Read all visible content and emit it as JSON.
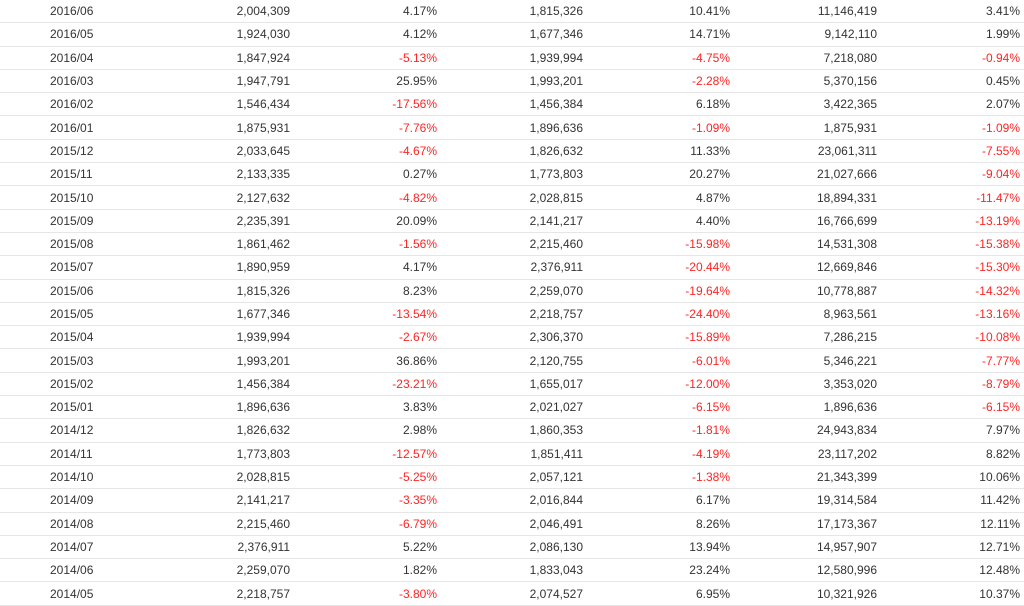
{
  "colors": {
    "text": "#333333",
    "negative": "#ff2424",
    "row_border": "#e6e6e6",
    "background": "#ffffff"
  },
  "rows": [
    [
      "2016/06",
      "2,004,309",
      "4.17%",
      "1,815,326",
      "10.41%",
      "11,146,419",
      "3.41%"
    ],
    [
      "2016/05",
      "1,924,030",
      "4.12%",
      "1,677,346",
      "14.71%",
      "9,142,110",
      "1.99%"
    ],
    [
      "2016/04",
      "1,847,924",
      "-5.13%",
      "1,939,994",
      "-4.75%",
      "7,218,080",
      "-0.94%"
    ],
    [
      "2016/03",
      "1,947,791",
      "25.95%",
      "1,993,201",
      "-2.28%",
      "5,370,156",
      "0.45%"
    ],
    [
      "2016/02",
      "1,546,434",
      "-17.56%",
      "1,456,384",
      "6.18%",
      "3,422,365",
      "2.07%"
    ],
    [
      "2016/01",
      "1,875,931",
      "-7.76%",
      "1,896,636",
      "-1.09%",
      "1,875,931",
      "-1.09%"
    ],
    [
      "2015/12",
      "2,033,645",
      "-4.67%",
      "1,826,632",
      "11.33%",
      "23,061,311",
      "-7.55%"
    ],
    [
      "2015/11",
      "2,133,335",
      "0.27%",
      "1,773,803",
      "20.27%",
      "21,027,666",
      "-9.04%"
    ],
    [
      "2015/10",
      "2,127,632",
      "-4.82%",
      "2,028,815",
      "4.87%",
      "18,894,331",
      "-11.47%"
    ],
    [
      "2015/09",
      "2,235,391",
      "20.09%",
      "2,141,217",
      "4.40%",
      "16,766,699",
      "-13.19%"
    ],
    [
      "2015/08",
      "1,861,462",
      "-1.56%",
      "2,215,460",
      "-15.98%",
      "14,531,308",
      "-15.38%"
    ],
    [
      "2015/07",
      "1,890,959",
      "4.17%",
      "2,376,911",
      "-20.44%",
      "12,669,846",
      "-15.30%"
    ],
    [
      "2015/06",
      "1,815,326",
      "8.23%",
      "2,259,070",
      "-19.64%",
      "10,778,887",
      "-14.32%"
    ],
    [
      "2015/05",
      "1,677,346",
      "-13.54%",
      "2,218,757",
      "-24.40%",
      "8,963,561",
      "-13.16%"
    ],
    [
      "2015/04",
      "1,939,994",
      "-2.67%",
      "2,306,370",
      "-15.89%",
      "7,286,215",
      "-10.08%"
    ],
    [
      "2015/03",
      "1,993,201",
      "36.86%",
      "2,120,755",
      "-6.01%",
      "5,346,221",
      "-7.77%"
    ],
    [
      "2015/02",
      "1,456,384",
      "-23.21%",
      "1,655,017",
      "-12.00%",
      "3,353,020",
      "-8.79%"
    ],
    [
      "2015/01",
      "1,896,636",
      "3.83%",
      "2,021,027",
      "-6.15%",
      "1,896,636",
      "-6.15%"
    ],
    [
      "2014/12",
      "1,826,632",
      "2.98%",
      "1,860,353",
      "-1.81%",
      "24,943,834",
      "7.97%"
    ],
    [
      "2014/11",
      "1,773,803",
      "-12.57%",
      "1,851,411",
      "-4.19%",
      "23,117,202",
      "8.82%"
    ],
    [
      "2014/10",
      "2,028,815",
      "-5.25%",
      "2,057,121",
      "-1.38%",
      "21,343,399",
      "10.06%"
    ],
    [
      "2014/09",
      "2,141,217",
      "-3.35%",
      "2,016,844",
      "6.17%",
      "19,314,584",
      "11.42%"
    ],
    [
      "2014/08",
      "2,215,460",
      "-6.79%",
      "2,046,491",
      "8.26%",
      "17,173,367",
      "12.11%"
    ],
    [
      "2014/07",
      "2,376,911",
      "5.22%",
      "2,086,130",
      "13.94%",
      "14,957,907",
      "12.71%"
    ],
    [
      "2014/06",
      "2,259,070",
      "1.82%",
      "1,833,043",
      "23.24%",
      "12,580,996",
      "12.48%"
    ],
    [
      "2014/05",
      "2,218,757",
      "-3.80%",
      "2,074,527",
      "6.95%",
      "10,321,926",
      "10.37%"
    ]
  ]
}
